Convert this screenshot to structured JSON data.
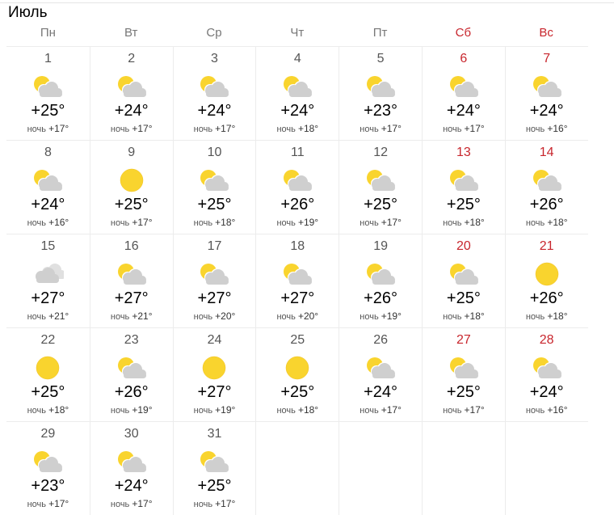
{
  "month": "Июль",
  "night_label": "ночь",
  "weekdays": [
    {
      "label": "Пн",
      "weekend": false
    },
    {
      "label": "Вт",
      "weekend": false
    },
    {
      "label": "Ср",
      "weekend": false
    },
    {
      "label": "Чт",
      "weekend": false
    },
    {
      "label": "Пт",
      "weekend": false
    },
    {
      "label": "Сб",
      "weekend": true
    },
    {
      "label": "Вс",
      "weekend": true
    }
  ],
  "colors": {
    "weekend": "#c8262d",
    "sun": "#f9d42e",
    "cloud": "#cfcfcf"
  },
  "days": [
    {
      "day": "1",
      "icon": "partly-cloudy",
      "temp": "+25°",
      "night": "+17°"
    },
    {
      "day": "2",
      "icon": "partly-cloudy",
      "temp": "+24°",
      "night": "+17°"
    },
    {
      "day": "3",
      "icon": "partly-cloudy",
      "temp": "+24°",
      "night": "+17°"
    },
    {
      "day": "4",
      "icon": "partly-cloudy",
      "temp": "+24°",
      "night": "+18°"
    },
    {
      "day": "5",
      "icon": "partly-cloudy",
      "temp": "+23°",
      "night": "+17°"
    },
    {
      "day": "6",
      "icon": "partly-cloudy",
      "temp": "+24°",
      "night": "+17°"
    },
    {
      "day": "7",
      "icon": "partly-cloudy",
      "temp": "+24°",
      "night": "+16°"
    },
    {
      "day": "8",
      "icon": "partly-cloudy",
      "temp": "+24°",
      "night": "+16°"
    },
    {
      "day": "9",
      "icon": "sunny",
      "temp": "+25°",
      "night": "+17°"
    },
    {
      "day": "10",
      "icon": "partly-cloudy",
      "temp": "+25°",
      "night": "+18°"
    },
    {
      "day": "11",
      "icon": "partly-cloudy",
      "temp": "+26°",
      "night": "+19°"
    },
    {
      "day": "12",
      "icon": "partly-cloudy",
      "temp": "+25°",
      "night": "+17°"
    },
    {
      "day": "13",
      "icon": "partly-cloudy",
      "temp": "+25°",
      "night": "+18°"
    },
    {
      "day": "14",
      "icon": "partly-cloudy",
      "temp": "+26°",
      "night": "+18°"
    },
    {
      "day": "15",
      "icon": "cloudy",
      "temp": "+27°",
      "night": "+21°"
    },
    {
      "day": "16",
      "icon": "partly-cloudy",
      "temp": "+27°",
      "night": "+21°"
    },
    {
      "day": "17",
      "icon": "partly-cloudy",
      "temp": "+27°",
      "night": "+20°"
    },
    {
      "day": "18",
      "icon": "partly-cloudy",
      "temp": "+27°",
      "night": "+20°"
    },
    {
      "day": "19",
      "icon": "partly-cloudy",
      "temp": "+26°",
      "night": "+19°"
    },
    {
      "day": "20",
      "icon": "partly-cloudy",
      "temp": "+25°",
      "night": "+18°"
    },
    {
      "day": "21",
      "icon": "sunny",
      "temp": "+26°",
      "night": "+18°"
    },
    {
      "day": "22",
      "icon": "sunny",
      "temp": "+25°",
      "night": "+18°"
    },
    {
      "day": "23",
      "icon": "partly-cloudy",
      "temp": "+26°",
      "night": "+19°"
    },
    {
      "day": "24",
      "icon": "sunny",
      "temp": "+27°",
      "night": "+19°"
    },
    {
      "day": "25",
      "icon": "sunny",
      "temp": "+25°",
      "night": "+18°"
    },
    {
      "day": "26",
      "icon": "partly-cloudy",
      "temp": "+24°",
      "night": "+17°"
    },
    {
      "day": "27",
      "icon": "partly-cloudy",
      "temp": "+25°",
      "night": "+17°"
    },
    {
      "day": "28",
      "icon": "partly-cloudy",
      "temp": "+24°",
      "night": "+16°"
    },
    {
      "day": "29",
      "icon": "partly-cloudy",
      "temp": "+23°",
      "night": "+17°"
    },
    {
      "day": "30",
      "icon": "partly-cloudy",
      "temp": "+24°",
      "night": "+17°"
    },
    {
      "day": "31",
      "icon": "partly-cloudy",
      "temp": "+25°",
      "night": "+17°"
    }
  ]
}
